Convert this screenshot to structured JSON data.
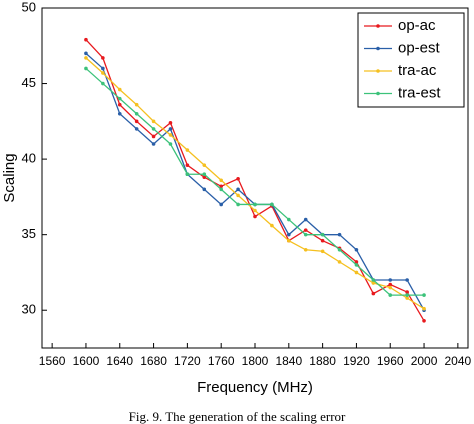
{
  "chart_data": {
    "type": "line",
    "xlabel": "Frequency (MHz)",
    "ylabel": "Scaling",
    "caption": "Fig. 9. The generation of the scaling error",
    "x": [
      1600,
      1620,
      1640,
      1660,
      1680,
      1700,
      1720,
      1740,
      1760,
      1780,
      1800,
      1820,
      1840,
      1860,
      1880,
      1900,
      1920,
      1940,
      1960,
      1980,
      2000
    ],
    "series": [
      {
        "name": "op-ac",
        "color": "#e8191e",
        "values": [
          47.9,
          46.7,
          43.6,
          42.5,
          41.5,
          42.4,
          39.6,
          38.8,
          38.2,
          38.7,
          36.2,
          36.9,
          34.6,
          35.3,
          34.6,
          34.1,
          33.2,
          31.1,
          31.7,
          31.2,
          29.3
        ]
      },
      {
        "name": "op-est",
        "color": "#2a5fa8",
        "values": [
          47.0,
          46.0,
          43.0,
          42.0,
          41.0,
          42.0,
          39.0,
          38.0,
          37.0,
          38.0,
          37.0,
          37.0,
          35.0,
          36.0,
          35.0,
          35.0,
          34.0,
          32.0,
          32.0,
          32.0,
          30.0
        ]
      },
      {
        "name": "tra-ac",
        "color": "#f5c020",
        "values": [
          46.7,
          45.7,
          44.6,
          43.6,
          42.5,
          41.6,
          40.6,
          39.6,
          38.6,
          37.6,
          36.6,
          35.6,
          34.6,
          34.0,
          33.9,
          33.2,
          32.5,
          31.8,
          31.5,
          30.8,
          30.1
        ]
      },
      {
        "name": "tra-est",
        "color": "#3cc27a",
        "values": [
          46.0,
          45.0,
          44.0,
          43.0,
          42.0,
          41.0,
          39.0,
          39.0,
          38.0,
          37.0,
          37.0,
          37.0,
          36.0,
          35.0,
          35.0,
          34.0,
          33.0,
          32.0,
          31.0,
          31.0,
          31.0
        ]
      }
    ],
    "xlim": [
      1548,
      2052
    ],
    "ylim": [
      27.5,
      50
    ],
    "xticks": [
      1560,
      1600,
      1640,
      1680,
      1720,
      1760,
      1800,
      1840,
      1880,
      1920,
      1960,
      2000,
      2040
    ],
    "yticks": [
      30,
      35,
      40,
      45,
      50
    ],
    "legend": "top-right"
  }
}
